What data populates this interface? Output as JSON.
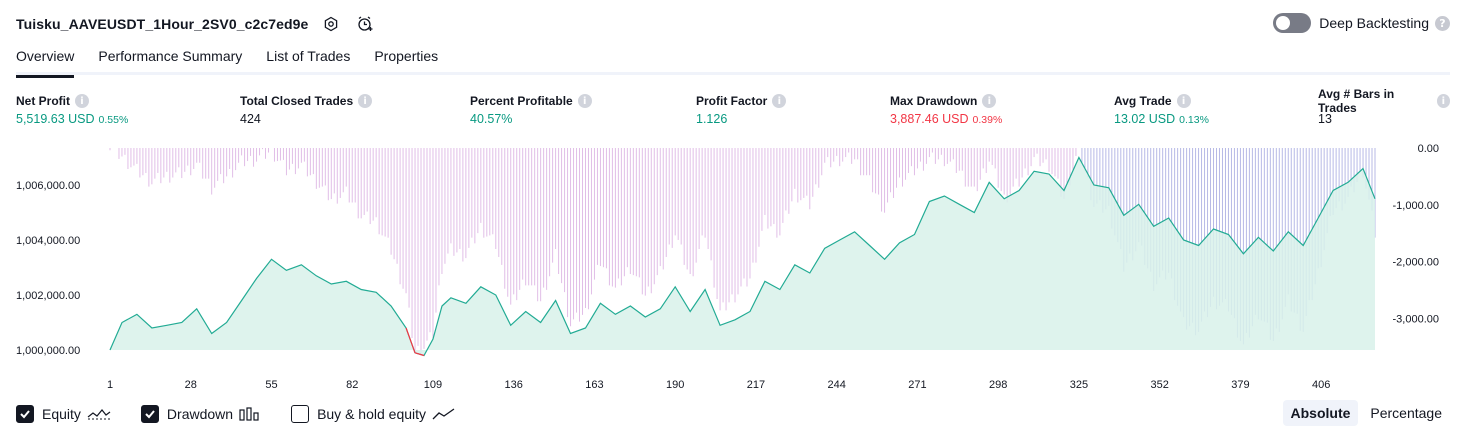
{
  "header": {
    "title": "Tuisku_AAVEUSDT_1Hour_2SV0_c2c7ed9e",
    "deep_backtesting_label": "Deep Backtesting",
    "deep_backtesting_enabled": false
  },
  "tabs": [
    {
      "label": "Overview",
      "active": true
    },
    {
      "label": "Performance Summary",
      "active": false
    },
    {
      "label": "List of Trades",
      "active": false
    },
    {
      "label": "Properties",
      "active": false
    }
  ],
  "metrics": [
    {
      "label": "Net Profit",
      "value": "5,519.63 USD",
      "pct": "0.55%",
      "tone": "green"
    },
    {
      "label": "Total Closed Trades",
      "value": "424",
      "pct": "",
      "tone": "neutral"
    },
    {
      "label": "Percent Profitable",
      "value": "40.57%",
      "pct": "",
      "tone": "green"
    },
    {
      "label": "Profit Factor",
      "value": "1.126",
      "pct": "",
      "tone": "green"
    },
    {
      "label": "Max Drawdown",
      "value": "3,887.46 USD",
      "pct": "0.39%",
      "tone": "red"
    },
    {
      "label": "Avg Trade",
      "value": "13.02 USD",
      "pct": "0.13%",
      "tone": "green"
    },
    {
      "label": "Avg # Bars in Trades",
      "value": "13",
      "pct": "",
      "tone": "neutral"
    }
  ],
  "colors": {
    "equity_line": "#22ab94",
    "equity_fill": "#d8f1ea",
    "equity_loss_line": "#f23645",
    "drawdown_bar": "#e1bee7",
    "drawdown_bar_overlap": "#b7b9e6",
    "axis_text": "#131722"
  },
  "chart_data": {
    "type": "line",
    "x_ticks": [
      "1",
      "28",
      "55",
      "82",
      "109",
      "136",
      "163",
      "190",
      "217",
      "244",
      "271",
      "298",
      "325",
      "352",
      "379",
      "406"
    ],
    "x_range": [
      1,
      424
    ],
    "equity_axis": {
      "ticks": [
        "1,006,000.00",
        "1,004,000.00",
        "1,002,000.00",
        "1,000,000.00"
      ],
      "tick_values": [
        1006000,
        1004000,
        1002000,
        1000000
      ],
      "range": [
        1000000,
        1007200
      ],
      "position": "left"
    },
    "drawdown_axis": {
      "ticks": [
        "0.00",
        "-1,000.00",
        "-2,000.00",
        "-3,000.00"
      ],
      "tick_values": [
        0,
        -1000,
        -2000,
        -3000
      ],
      "range": [
        -3700,
        0
      ],
      "position": "right"
    },
    "equity_series": {
      "name": "Equity",
      "x": [
        1,
        5,
        10,
        15,
        20,
        25,
        30,
        35,
        40,
        45,
        50,
        55,
        60,
        65,
        70,
        75,
        80,
        85,
        90,
        95,
        100,
        103,
        106,
        109,
        112,
        115,
        120,
        125,
        130,
        135,
        140,
        145,
        150,
        155,
        160,
        165,
        170,
        175,
        180,
        185,
        190,
        195,
        200,
        205,
        210,
        215,
        220,
        225,
        230,
        235,
        240,
        245,
        250,
        255,
        260,
        265,
        270,
        275,
        280,
        285,
        290,
        295,
        300,
        305,
        310,
        315,
        320,
        325,
        330,
        335,
        340,
        345,
        350,
        355,
        360,
        365,
        370,
        375,
        380,
        385,
        390,
        395,
        400,
        405,
        410,
        415,
        420,
        424
      ],
      "y": [
        1000000,
        1001000,
        1001300,
        1000800,
        1000900,
        1001000,
        1001500,
        1000600,
        1001000,
        1001800,
        1002600,
        1003300,
        1002900,
        1003100,
        1002700,
        1002400,
        1002500,
        1002200,
        1002100,
        1001600,
        1000800,
        999900,
        999800,
        1000400,
        1001600,
        1001900,
        1001700,
        1002300,
        1002000,
        1000900,
        1001400,
        1001000,
        1001800,
        1000600,
        1000800,
        1001700,
        1001300,
        1001600,
        1001200,
        1001500,
        1002300,
        1001400,
        1002200,
        1000900,
        1001100,
        1001400,
        1002500,
        1002200,
        1003100,
        1002800,
        1003700,
        1004000,
        1004300,
        1003800,
        1003300,
        1003900,
        1004200,
        1005400,
        1005600,
        1005300,
        1005000,
        1006100,
        1005500,
        1005800,
        1006500,
        1006400,
        1005800,
        1007000,
        1006000,
        1005900,
        1004900,
        1005300,
        1004500,
        1004800,
        1004000,
        1003800,
        1004400,
        1004200,
        1003500,
        1004100,
        1003600,
        1004300,
        1003800,
        1004800,
        1005800,
        1006100,
        1006600,
        1005500
      ]
    },
    "drawdown_series": {
      "name": "Drawdown",
      "x": [
        1,
        5,
        10,
        15,
        20,
        25,
        30,
        35,
        40,
        45,
        50,
        55,
        60,
        65,
        70,
        75,
        80,
        85,
        90,
        95,
        100,
        103,
        106,
        109,
        112,
        115,
        120,
        125,
        130,
        135,
        140,
        145,
        150,
        155,
        160,
        165,
        170,
        175,
        180,
        185,
        190,
        195,
        200,
        205,
        210,
        215,
        220,
        225,
        230,
        235,
        240,
        245,
        250,
        255,
        260,
        265,
        270,
        275,
        280,
        285,
        290,
        295,
        300,
        305,
        310,
        315,
        320,
        325,
        330,
        335,
        340,
        345,
        350,
        355,
        360,
        365,
        370,
        375,
        380,
        385,
        390,
        395,
        400,
        405,
        410,
        415,
        420,
        424
      ],
      "y": [
        0,
        -150,
        -400,
        -600,
        -500,
        -450,
        -300,
        -700,
        -500,
        -250,
        -200,
        -50,
        -400,
        -300,
        -600,
        -900,
        -800,
        -1200,
        -1300,
        -1800,
        -2600,
        -3600,
        -3500,
        -3300,
        -2100,
        -1800,
        -1900,
        -1400,
        -1700,
        -2800,
        -2300,
        -2700,
        -1900,
        -3100,
        -2900,
        -2000,
        -2500,
        -2100,
        -2600,
        -2200,
        -1500,
        -2300,
        -1500,
        -2900,
        -2600,
        -2300,
        -1300,
        -1500,
        -800,
        -1000,
        -300,
        -200,
        -200,
        -600,
        -1100,
        -600,
        -400,
        -200,
        -200,
        -400,
        -800,
        -200,
        -900,
        -600,
        -200,
        -300,
        -900,
        0,
        -1000,
        -1100,
        -2100,
        -1700,
        -2400,
        -2200,
        -3100,
        -3200,
        -2700,
        -2800,
        -3500,
        -2900,
        -3400,
        -2700,
        -3200,
        -2200,
        -1100,
        -900,
        -400,
        -1500
      ]
    }
  },
  "legend": [
    {
      "label": "Equity",
      "checked": true,
      "icon": "equity-line-icon"
    },
    {
      "label": "Drawdown",
      "checked": true,
      "icon": "drawdown-bars-icon"
    },
    {
      "label": "Buy & hold equity",
      "checked": false,
      "icon": "buy-hold-line-icon"
    }
  ],
  "mode": {
    "absolute_label": "Absolute",
    "percentage_label": "Percentage",
    "selected": "Absolute"
  }
}
